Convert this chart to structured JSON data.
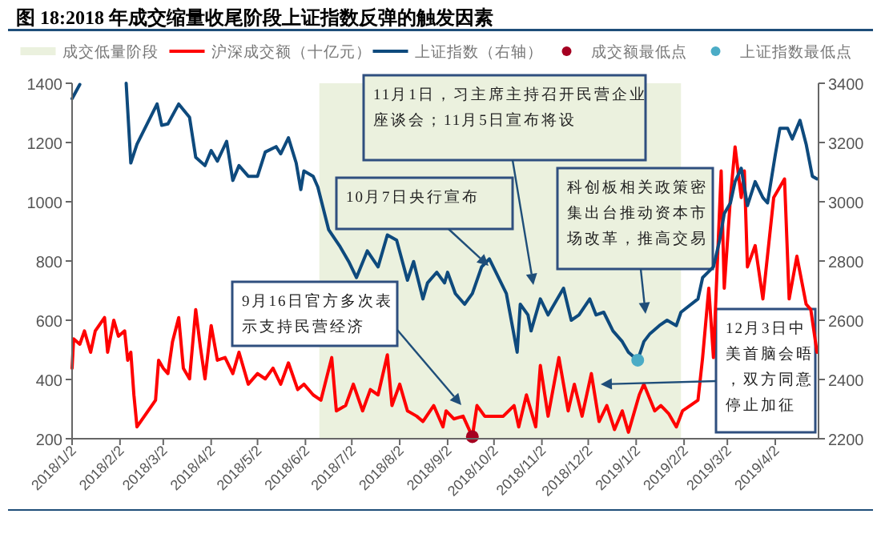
{
  "chart_data": {
    "type": "line",
    "title": "图 18:2018 年成交缩量收尾阶段上证指数反弹的触发因素",
    "xlim": [
      "2018-01-02",
      "2019-04-30"
    ],
    "xticks": [
      {
        "value": "2018-01-02",
        "label": "2018/1/2"
      },
      {
        "value": "2018-02-02",
        "label": "2018/2/2"
      },
      {
        "value": "2018-03-02",
        "label": "2018/3/2"
      },
      {
        "value": "2018-04-02",
        "label": "2018/4/2"
      },
      {
        "value": "2018-05-02",
        "label": "2018/5/2"
      },
      {
        "value": "2018-06-02",
        "label": "2018/6/2"
      },
      {
        "value": "2018-07-02",
        "label": "2018/7/2"
      },
      {
        "value": "2018-08-02",
        "label": "2018/8/2"
      },
      {
        "value": "2018-09-02",
        "label": "2018/9/2"
      },
      {
        "value": "2018-10-02",
        "label": "2018/10/2"
      },
      {
        "value": "2018-11-02",
        "label": "2018/11/2"
      },
      {
        "value": "2018-12-02",
        "label": "2018/12/2"
      },
      {
        "value": "2019-01-02",
        "label": "2019/1/2"
      },
      {
        "value": "2019-02-02",
        "label": "2019/2/2"
      },
      {
        "value": "2019-03-02",
        "label": "2019/3/2"
      },
      {
        "value": "2019-04-02",
        "label": "2019/4/2"
      }
    ],
    "ylim": [
      200,
      1400
    ],
    "yticks": [
      200,
      400,
      600,
      800,
      1000,
      1200,
      1400
    ],
    "y2lim": [
      2200,
      3400
    ],
    "y2ticks": [
      2200,
      2400,
      2600,
      2800,
      3000,
      3200,
      3400
    ],
    "grid": false,
    "legend": "top",
    "bands": [
      {
        "axis": "x",
        "from": "2018-06-11",
        "to": "2019-01-31",
        "label": "成交低量阶段",
        "color": "#ebf1de"
      }
    ],
    "series": [
      {
        "name": "沪深成交额（十亿元）",
        "color": "#ff0000",
        "x": [
          "2018-01-02",
          "2018-01-03",
          "2018-01-07",
          "2018-01-10",
          "2018-01-14",
          "2018-01-17",
          "2018-01-23",
          "2018-01-25",
          "2018-01-29",
          "2018-02-01",
          "2018-02-05",
          "2018-02-07",
          "2018-02-09",
          "2018-02-11",
          "2018-02-13",
          "2018-02-25",
          "2018-02-27",
          "2018-03-02",
          "2018-03-05",
          "2018-03-08",
          "2018-03-12",
          "2018-03-15",
          "2018-03-19",
          "2018-03-23",
          "2018-03-26",
          "2018-03-29",
          "2018-04-02",
          "2018-04-06",
          "2018-04-11",
          "2018-04-16",
          "2018-04-20",
          "2018-04-26",
          "2018-05-02",
          "2018-05-07",
          "2018-05-12",
          "2018-05-17",
          "2018-05-22",
          "2018-05-28",
          "2018-06-01",
          "2018-06-07",
          "2018-06-12",
          "2018-06-19",
          "2018-06-22",
          "2018-06-28",
          "2018-07-03",
          "2018-07-09",
          "2018-07-14",
          "2018-07-19",
          "2018-07-25",
          "2018-07-28",
          "2018-08-02",
          "2018-08-07",
          "2018-08-13",
          "2018-08-17",
          "2018-08-24",
          "2018-08-30",
          "2018-09-01",
          "2018-09-06",
          "2018-09-12",
          "2018-09-18",
          "2018-09-21",
          "2018-09-26",
          "2018-10-08",
          "2018-10-15",
          "2018-10-18",
          "2018-10-23",
          "2018-10-29",
          "2018-11-01",
          "2018-11-06",
          "2018-11-13",
          "2018-11-19",
          "2018-11-23",
          "2018-11-28",
          "2018-12-04",
          "2018-12-09",
          "2018-12-14",
          "2018-12-19",
          "2018-12-24",
          "2018-12-28",
          "2019-01-04",
          "2019-01-07",
          "2019-01-14",
          "2019-01-18",
          "2019-01-23",
          "2019-01-28",
          "2019-02-01",
          "2019-02-11",
          "2019-02-14",
          "2019-02-18",
          "2019-02-21",
          "2019-02-26",
          "2019-02-28",
          "2019-03-04",
          "2019-03-07",
          "2019-03-11",
          "2019-03-13",
          "2019-03-15",
          "2019-03-20",
          "2019-03-25",
          "2019-04-01",
          "2019-04-08",
          "2019-04-11",
          "2019-04-16",
          "2019-04-22",
          "2019-04-25",
          "2019-04-29"
        ],
        "values": [
          438,
          537,
          519,
          564,
          492,
          564,
          609,
          492,
          600,
          546,
          564,
          465,
          492,
          348,
          240,
          330,
          465,
          438,
          420,
          528,
          609,
          438,
          402,
          636,
          510,
          402,
          582,
          465,
          474,
          420,
          492,
          384,
          420,
          402,
          438,
          384,
          456,
          366,
          384,
          348,
          330,
          474,
          294,
          312,
          384,
          294,
          366,
          348,
          483,
          312,
          384,
          294,
          276,
          258,
          312,
          240,
          294,
          267,
          276,
          207,
          312,
          276,
          276,
          312,
          240,
          348,
          240,
          447,
          276,
          474,
          294,
          384,
          276,
          420,
          258,
          312,
          231,
          294,
          222,
          348,
          384,
          294,
          312,
          285,
          240,
          294,
          330,
          474,
          708,
          474,
          1104,
          708,
          1014,
          1185,
          1014,
          1104,
          780,
          852,
          672,
          1014,
          1077,
          672,
          816,
          654,
          636,
          492
        ]
      },
      {
        "name": "上证指数（右轴）",
        "axis": "y2",
        "color": "#0e4a7d",
        "x": [
          "2018-01-02",
          "2018-01-07",
          "2018-01-20",
          "2018-02-06",
          "2018-02-09",
          "2018-02-13",
          "2018-02-26",
          "2018-03-01",
          "2018-03-05",
          "2018-03-12",
          "2018-03-19",
          "2018-03-23",
          "2018-03-29",
          "2018-04-02",
          "2018-04-06",
          "2018-04-12",
          "2018-04-16",
          "2018-04-20",
          "2018-04-26",
          "2018-05-02",
          "2018-05-07",
          "2018-05-14",
          "2018-05-17",
          "2018-05-22",
          "2018-05-27",
          "2018-05-30",
          "2018-06-01",
          "2018-06-07",
          "2018-06-10",
          "2018-06-17",
          "2018-06-24",
          "2018-06-30",
          "2018-07-05",
          "2018-07-12",
          "2018-07-19",
          "2018-07-25",
          "2018-07-31",
          "2018-08-07",
          "2018-08-11",
          "2018-08-17",
          "2018-08-20",
          "2018-08-26",
          "2018-08-31",
          "2018-09-02",
          "2018-09-07",
          "2018-09-13",
          "2018-09-18",
          "2018-09-24",
          "2018-09-29",
          "2018-10-10",
          "2018-10-17",
          "2018-10-19",
          "2018-10-24",
          "2018-10-26",
          "2018-11-01",
          "2018-11-06",
          "2018-11-12",
          "2018-11-16",
          "2018-11-21",
          "2018-11-26",
          "2018-12-03",
          "2018-12-07",
          "2018-12-12",
          "2018-12-18",
          "2018-12-24",
          "2018-12-28",
          "2019-01-03",
          "2019-01-07",
          "2019-01-11",
          "2019-01-17",
          "2019-01-22",
          "2019-01-28",
          "2019-01-31",
          "2019-02-11",
          "2019-02-14",
          "2019-02-21",
          "2019-02-25",
          "2019-02-28",
          "2019-03-04",
          "2019-03-07",
          "2019-03-11",
          "2019-03-15",
          "2019-03-20",
          "2019-03-25",
          "2019-03-28",
          "2019-04-02",
          "2019-04-05",
          "2019-04-10",
          "2019-04-13",
          "2019-04-18",
          "2019-04-22",
          "2019-04-26",
          "2019-04-29"
        ],
        "values": [
          3348,
          3396,
          null,
          3400,
          3131,
          3194,
          3330,
          3258,
          3263,
          3330,
          3285,
          3150,
          3122,
          3173,
          3137,
          3204,
          3072,
          3122,
          3086,
          3086,
          3168,
          3186,
          3162,
          3216,
          3131,
          3041,
          3104,
          3086,
          3050,
          2906,
          2852,
          2798,
          2744,
          2834,
          2780,
          2888,
          2870,
          2735,
          2798,
          2672,
          2726,
          2762,
          2726,
          2762,
          2690,
          2654,
          2690,
          2780,
          2807,
          2690,
          2492,
          2654,
          2618,
          2564,
          2672,
          2618,
          2672,
          2708,
          2600,
          2618,
          2672,
          2618,
          2627,
          2564,
          2528,
          2492,
          2465,
          2528,
          2555,
          2582,
          2600,
          2582,
          2627,
          2672,
          2744,
          2780,
          2870,
          2960,
          2996,
          3068,
          3113,
          2987,
          3068,
          3014,
          2996,
          3158,
          3248,
          3248,
          3212,
          3275,
          3194,
          3086,
          3077
        ]
      },
      {
        "name": "成交额最低点",
        "type": "scatter",
        "marker": "circle",
        "color": "#a50021",
        "x": [
          "2018-09-18"
        ],
        "values": [
          207
        ]
      },
      {
        "name": "上证指数最低点",
        "type": "scatter",
        "marker": "circle",
        "axis": "y2",
        "color": "#4bacc6",
        "x": [
          "2019-01-03"
        ],
        "values": [
          2465
        ]
      }
    ],
    "annotations": [
      "11月1日，习主席主持召开民营企业座谈会；11月5日宣布将设",
      "10月7日央行宣布",
      "9月16日官方多次表示支持民营经济",
      "科创板相关政策密集出台推动资本市场改革，推高交易",
      "12月3日中美首脑会晤，双方同意停止加征"
    ]
  }
}
